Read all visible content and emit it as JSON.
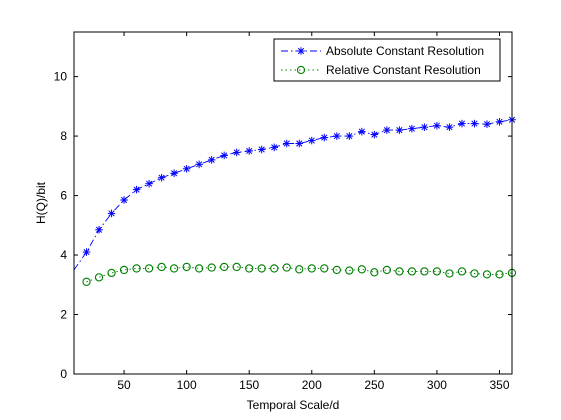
{
  "chart_data": {
    "type": "line",
    "title": "",
    "xlabel": "Temporal Scale/d",
    "ylabel": "H(Q)/bit",
    "xlim": [
      10,
      360
    ],
    "ylim": [
      0,
      11.5
    ],
    "xticks": [
      50,
      100,
      150,
      200,
      250,
      300,
      350
    ],
    "yticks": [
      0,
      2,
      4,
      6,
      8,
      10
    ],
    "grid": false,
    "legend_position": "top-right",
    "series": [
      {
        "name": "Absolute Constant Resolution",
        "color": "#0000ff",
        "line_style": "dash-dot",
        "marker": "asterisk",
        "x": [
          10,
          20,
          30,
          40,
          50,
          60,
          70,
          80,
          90,
          100,
          110,
          120,
          130,
          140,
          150,
          160,
          170,
          180,
          190,
          200,
          210,
          220,
          230,
          240,
          250,
          260,
          270,
          280,
          290,
          300,
          310,
          320,
          330,
          340,
          350,
          360
        ],
        "y": [
          3.5,
          4.1,
          4.85,
          5.4,
          5.85,
          6.2,
          6.4,
          6.6,
          6.75,
          6.9,
          7.05,
          7.2,
          7.35,
          7.45,
          7.5,
          7.55,
          7.62,
          7.75,
          7.75,
          7.85,
          7.95,
          8.0,
          8.0,
          8.15,
          8.05,
          8.2,
          8.2,
          8.25,
          8.3,
          8.35,
          8.3,
          8.42,
          8.42,
          8.4,
          8.48,
          8.55
        ]
      },
      {
        "name": "Relative Constant Resolution",
        "color": "#008000",
        "line_style": "dotted",
        "marker": "circle",
        "x": [
          20,
          30,
          40,
          50,
          60,
          70,
          80,
          90,
          100,
          110,
          120,
          130,
          140,
          150,
          160,
          170,
          180,
          190,
          200,
          210,
          220,
          230,
          240,
          250,
          260,
          270,
          280,
          290,
          300,
          310,
          320,
          330,
          340,
          350,
          360
        ],
        "y": [
          3.1,
          3.25,
          3.4,
          3.5,
          3.55,
          3.55,
          3.6,
          3.55,
          3.6,
          3.55,
          3.58,
          3.6,
          3.6,
          3.55,
          3.55,
          3.55,
          3.58,
          3.52,
          3.55,
          3.55,
          3.5,
          3.48,
          3.52,
          3.42,
          3.5,
          3.45,
          3.45,
          3.45,
          3.45,
          3.38,
          3.45,
          3.38,
          3.35,
          3.35,
          3.4
        ]
      }
    ]
  }
}
